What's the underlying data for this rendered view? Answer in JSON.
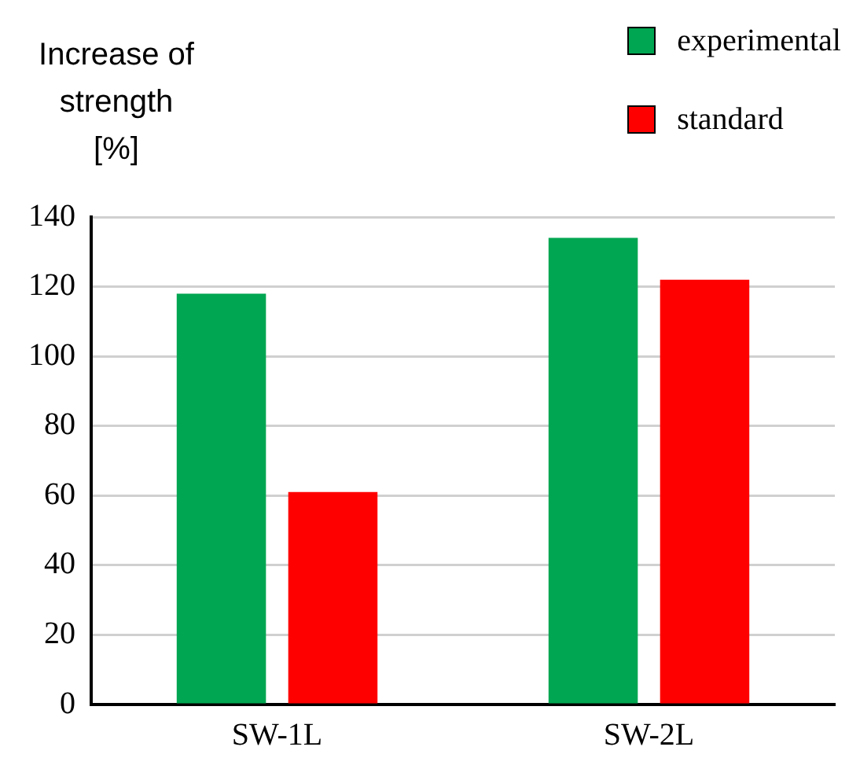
{
  "chart_data": {
    "type": "bar",
    "ylabel": "Increase of strength [%]",
    "categories": [
      "SW-1L",
      "SW-2L"
    ],
    "series": [
      {
        "name": "experimental",
        "color": "#00a651",
        "values": [
          118,
          134
        ]
      },
      {
        "name": "standard",
        "color": "#ff0000",
        "values": [
          61,
          122
        ]
      }
    ],
    "ylim": [
      0,
      140
    ],
    "yticks": [
      0,
      20,
      40,
      60,
      80,
      100,
      120,
      140
    ],
    "grid": "y",
    "legend": "top right"
  }
}
